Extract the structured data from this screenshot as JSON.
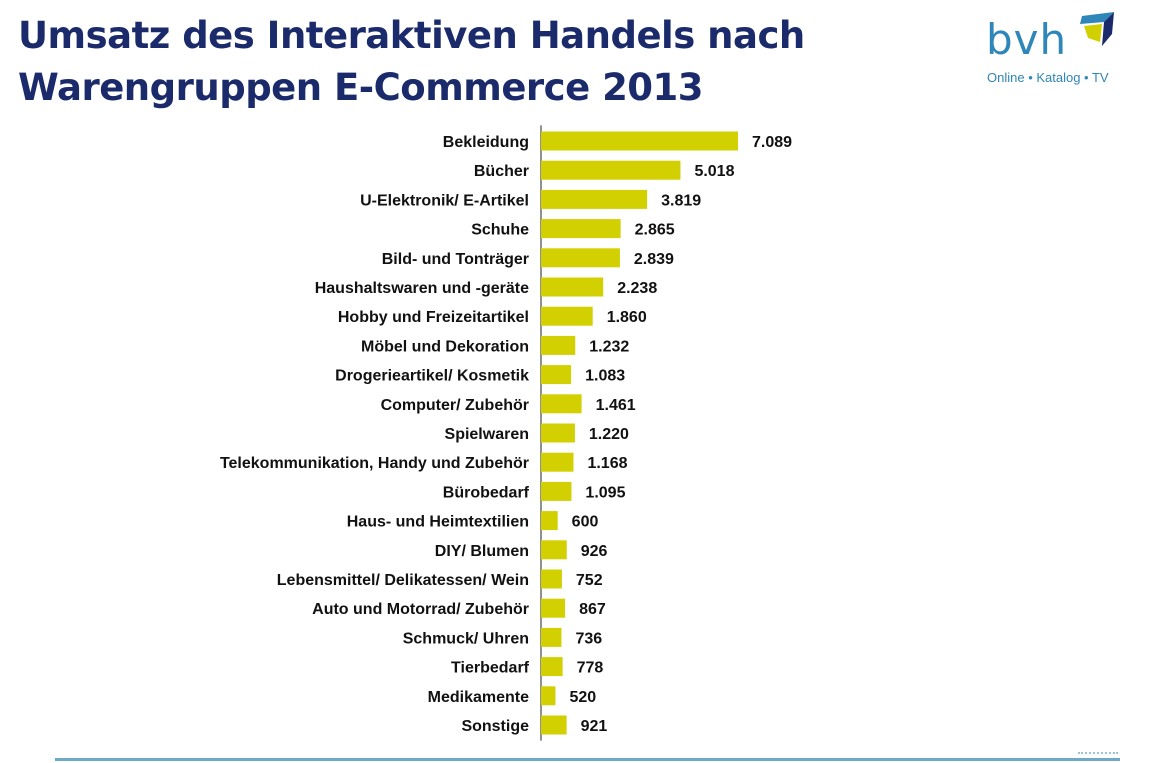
{
  "title": {
    "line1": "Umsatz des Interaktiven Handels nach",
    "line2": "Warengruppen  E-Commerce 2013"
  },
  "logo": {
    "word": "bvh",
    "tagline": "Online • Katalog • TV",
    "icon": "cube-icon"
  },
  "colors": {
    "bar": "#d2d000",
    "title": "#1b2a6b",
    "logo": "#2f86b8"
  },
  "chart_data": {
    "type": "bar",
    "orientation": "horizontal",
    "categories": [
      "Bekleidung",
      "Bücher",
      "U-Elektronik/ E-Artikel",
      "Schuhe",
      "Bild- und Tonträger",
      "Haushaltswaren und -geräte",
      "Hobby und Freizeitartikel",
      "Möbel und Dekoration",
      "Drogerieartikel/ Kosmetik",
      "Computer/ Zubehör",
      "Spielwaren",
      "Telekommunikation, Handy und Zubehör",
      "Bürobedarf",
      "Haus- und Heimtextilien",
      "DIY/ Blumen",
      "Lebensmittel/ Delikatessen/ Wein",
      "Auto und Motorrad/ Zubehör",
      "Schmuck/ Uhren",
      "Tierbedarf",
      "Medikamente",
      "Sonstige"
    ],
    "values": [
      7089,
      5018,
      3819,
      2865,
      2839,
      2238,
      1860,
      1232,
      1083,
      1461,
      1220,
      1168,
      1095,
      600,
      926,
      752,
      867,
      736,
      778,
      520,
      921
    ],
    "value_labels": [
      "7.089",
      "5.018",
      "3.819",
      "2.865",
      "2.839",
      "2.238",
      "1.860",
      "1.232",
      "1.083",
      "1.461",
      "1.220",
      "1.168",
      "1.095",
      "600",
      "926",
      "752",
      "867",
      "736",
      "778",
      "520",
      "921"
    ],
    "title": "",
    "xlabel": "",
    "ylabel": "",
    "xlim": [
      0,
      7089
    ],
    "grid": false,
    "legend": "none"
  }
}
